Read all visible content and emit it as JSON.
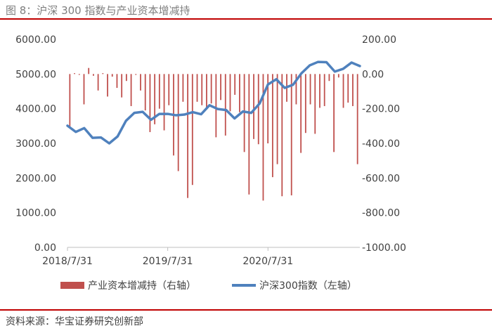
{
  "header": {
    "title": "图 8：沪深 300 指数与产业资本增减持"
  },
  "footer": {
    "source": "资料来源：华宝证券研究创新部"
  },
  "colors": {
    "bar": "#c0504d",
    "line": "#4f81bd",
    "accent_rule": "#c00000",
    "text": "#404040"
  },
  "chart_data": {
    "type": "bar+line",
    "title": "",
    "x_tick_labels": [
      "2018/7/31",
      "2019/7/31",
      "2020/7/31"
    ],
    "y_left": {
      "ticks": [
        "6000.00",
        "5000.00",
        "4000.00",
        "3000.00",
        "2000.00",
        "1000.00",
        "0.00"
      ],
      "ylim": [
        0,
        6000
      ]
    },
    "y_right": {
      "ticks": [
        "200.00",
        "0.00",
        "-200.00",
        "-400.00",
        "-600.00",
        "-800.00",
        "-1000.00"
      ],
      "ylim": [
        -1000,
        200
      ]
    },
    "grid": false,
    "legend_position": "bottom",
    "series": [
      {
        "name": "产业资本增减持（右轴）",
        "type": "bar",
        "axis": "right",
        "values": [
          -305,
          5,
          -5,
          -175,
          35,
          -10,
          -95,
          5,
          -130,
          -15,
          -80,
          -135,
          -40,
          -185,
          -5,
          -95,
          -210,
          -335,
          -290,
          -200,
          -325,
          -180,
          -470,
          -560,
          -160,
          -715,
          -640,
          -160,
          -180,
          -205,
          -170,
          -365,
          -150,
          -355,
          -215,
          -120,
          -220,
          -450,
          -695,
          -375,
          -405,
          -730,
          -400,
          -595,
          -520,
          -705,
          -160,
          -700,
          -175,
          -455,
          -340,
          -175,
          -345,
          -195,
          -185,
          -40,
          -450,
          -20,
          -195,
          -165,
          -185,
          -520
        ]
      },
      {
        "name": "沪深300指数（左轴）",
        "type": "line",
        "axis": "left",
        "values": [
          3510,
          3330,
          3440,
          3160,
          3170,
          3000,
          3200,
          3650,
          3880,
          3910,
          3680,
          3850,
          3850,
          3810,
          3830,
          3900,
          3840,
          4100,
          3990,
          3960,
          3720,
          3920,
          3880,
          4150,
          4700,
          4850,
          4600,
          4690,
          5020,
          5250,
          5350,
          5340,
          5070,
          5150,
          5330,
          5230
        ]
      }
    ]
  }
}
